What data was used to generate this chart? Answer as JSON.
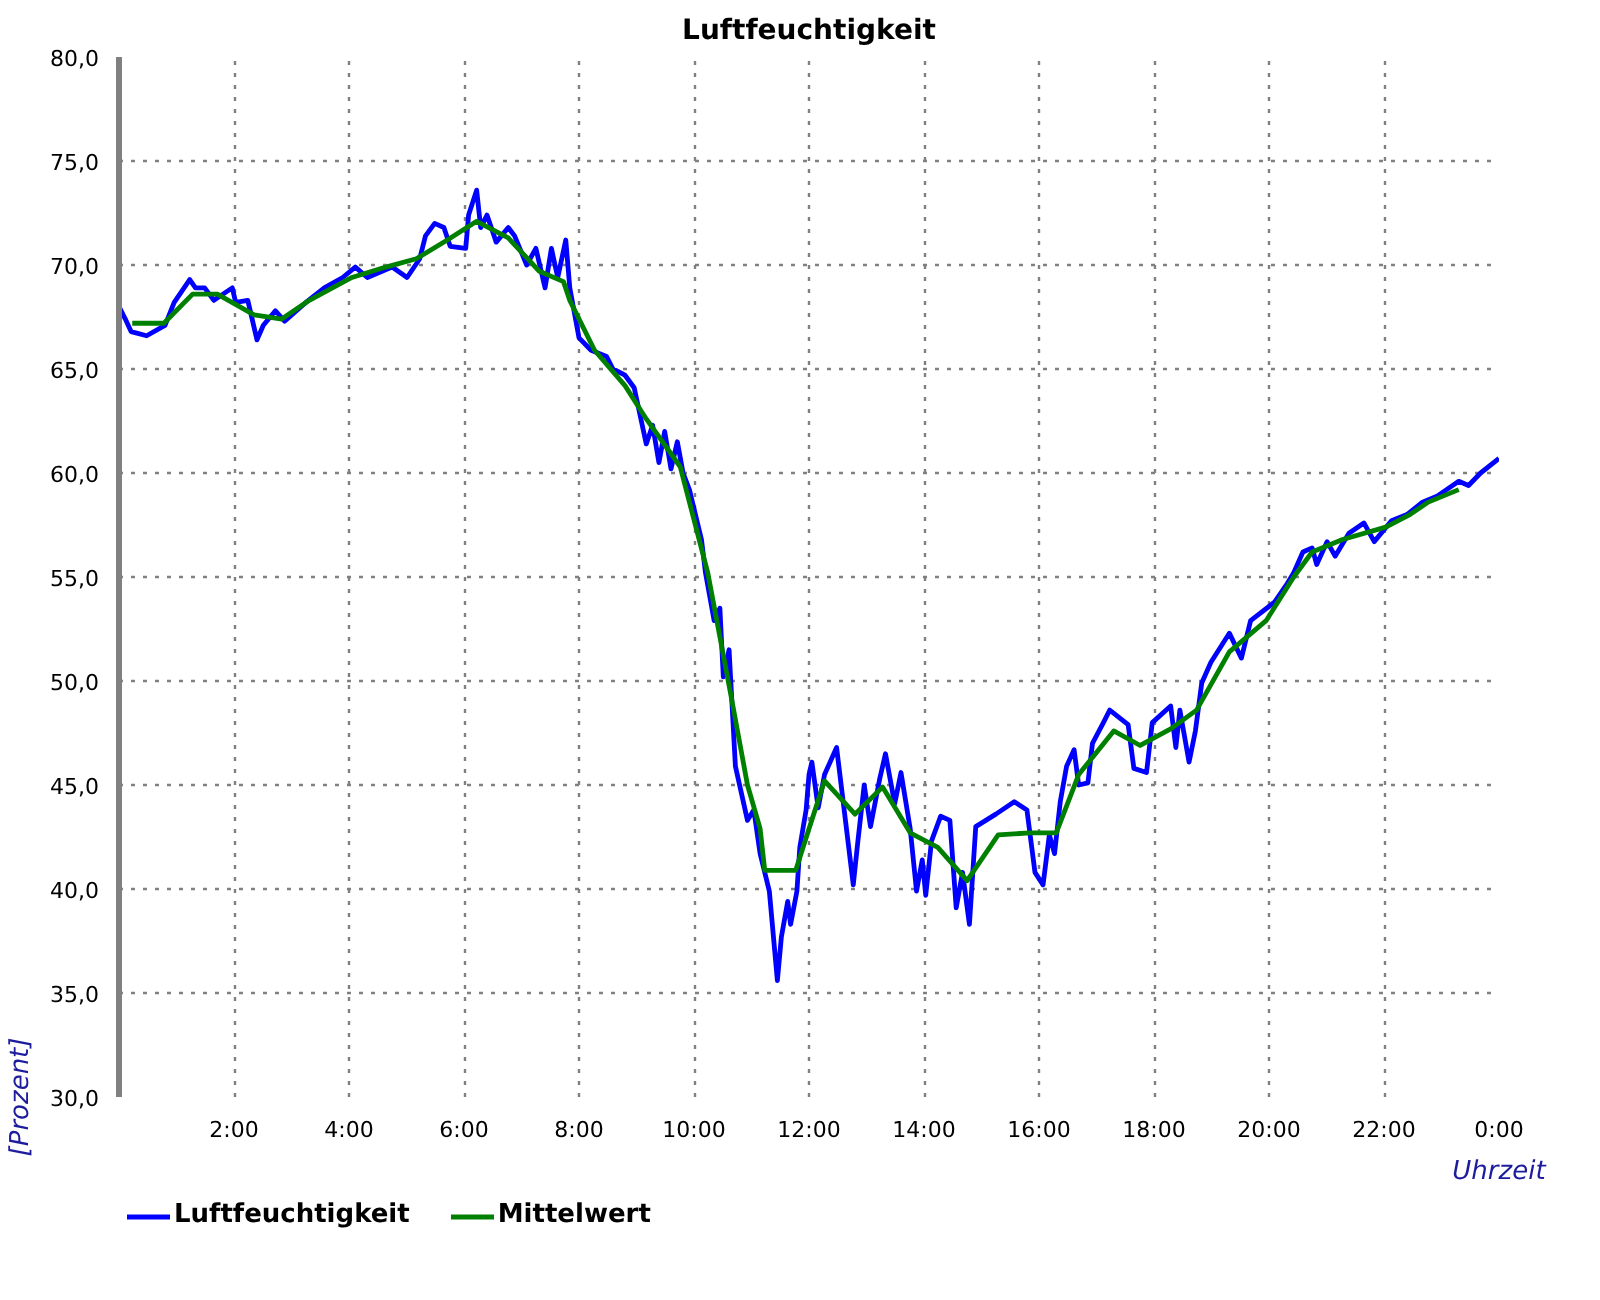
{
  "chart_data": {
    "type": "line",
    "title": "Luftfeuchtigkeit",
    "xlabel": "Uhrzeit",
    "ylabel": "[Prozent]",
    "xlim": [
      0,
      24
    ],
    "ylim": [
      30,
      80
    ],
    "xticks": [
      {
        "value": 0,
        "label": null
      },
      {
        "value": 2,
        "label": "2:00"
      },
      {
        "value": 4,
        "label": "4:00"
      },
      {
        "value": 6,
        "label": "6:00"
      },
      {
        "value": 8,
        "label": "8:00"
      },
      {
        "value": 10,
        "label": "10:00"
      },
      {
        "value": 12,
        "label": "12:00"
      },
      {
        "value": 14,
        "label": "14:00"
      },
      {
        "value": 16,
        "label": "16:00"
      },
      {
        "value": 18,
        "label": "18:00"
      },
      {
        "value": 20,
        "label": "20:00"
      },
      {
        "value": 22,
        "label": "22:00"
      },
      {
        "value": 24,
        "label": "0:00"
      }
    ],
    "yticks": [
      {
        "value": 30,
        "label": "30,0"
      },
      {
        "value": 35,
        "label": "35,0"
      },
      {
        "value": 40,
        "label": "40,0"
      },
      {
        "value": 45,
        "label": "45,0"
      },
      {
        "value": 50,
        "label": "50,0"
      },
      {
        "value": 55,
        "label": "55,0"
      },
      {
        "value": 60,
        "label": "60,0"
      },
      {
        "value": 65,
        "label": "65,0"
      },
      {
        "value": 70,
        "label": "70,0"
      },
      {
        "value": 75,
        "label": "75,0"
      },
      {
        "value": 80,
        "label": "80,0"
      }
    ],
    "grid": true,
    "legend": "bottom",
    "series": [
      {
        "name": "Luftfeuchtigkeit",
        "color": "#0000ff",
        "x": [
          0,
          0.11,
          0.21,
          0.48,
          0.8,
          0.96,
          1.23,
          1.33,
          1.49,
          1.65,
          1.97,
          2.03,
          2.24,
          2.4,
          2.51,
          2.72,
          2.88,
          3.25,
          3.57,
          3.89,
          4.11,
          4.32,
          4.75,
          5.01,
          5.23,
          5.33,
          5.49,
          5.65,
          5.76,
          6.03,
          6.08,
          6.22,
          6.29,
          6.4,
          6.56,
          6.77,
          6.88,
          7.09,
          7.25,
          7.41,
          7.52,
          7.63,
          7.77,
          7.84,
          8.0,
          8.21,
          8.48,
          8.59,
          8.8,
          8.96,
          9.17,
          9.28,
          9.39,
          9.49,
          9.6,
          9.71,
          9.81,
          9.92,
          10.13,
          10.2,
          10.35,
          10.45,
          10.51,
          10.61,
          10.72,
          10.93,
          11.04,
          11.15,
          11.31,
          11.45,
          11.52,
          11.63,
          11.68,
          11.79,
          11.84,
          11.95,
          12.0,
          12.05,
          12.16,
          12.27,
          12.48,
          12.77,
          12.85,
          12.96,
          13.07,
          13.23,
          13.33,
          13.49,
          13.6,
          13.76,
          13.87,
          13.97,
          14.03,
          14.13,
          14.29,
          14.45,
          14.56,
          14.67,
          14.79,
          14.9,
          15.25,
          15.57,
          15.79,
          15.93,
          16.07,
          16.18,
          16.27,
          16.37,
          16.48,
          16.61,
          16.69,
          16.85,
          16.93,
          17.12,
          17.23,
          17.55,
          17.65,
          17.87,
          17.97,
          18.29,
          18.38,
          18.45,
          18.61,
          18.72,
          18.83,
          18.99,
          19.31,
          19.52,
          19.68,
          20.1,
          20.32,
          20.43,
          20.59,
          20.75,
          20.83,
          21.01,
          21.15,
          21.39,
          21.65,
          21.83,
          22.13,
          22.4,
          22.67,
          22.93,
          23.3,
          23.47,
          23.68,
          24.0
        ],
        "values": [
          68.0,
          67.4,
          66.8,
          66.6,
          67.1,
          68.2,
          69.3,
          68.9,
          68.9,
          68.3,
          68.9,
          68.2,
          68.3,
          66.4,
          67.1,
          67.8,
          67.3,
          68.2,
          68.9,
          69.4,
          69.9,
          69.4,
          69.9,
          69.4,
          70.3,
          71.4,
          72.0,
          71.8,
          70.9,
          70.8,
          72.4,
          73.6,
          71.8,
          72.4,
          71.1,
          71.8,
          71.4,
          70.0,
          70.8,
          68.9,
          70.8,
          69.4,
          71.2,
          68.9,
          66.5,
          65.9,
          65.6,
          65.0,
          64.7,
          64.1,
          61.4,
          62.3,
          60.5,
          62.0,
          60.2,
          61.5,
          60.0,
          59.2,
          56.8,
          55.2,
          52.9,
          53.5,
          50.2,
          51.5,
          45.9,
          43.3,
          43.8,
          41.7,
          39.9,
          35.6,
          37.7,
          39.4,
          38.3,
          39.9,
          42.0,
          43.8,
          45.5,
          46.1,
          43.9,
          45.5,
          46.8,
          40.2,
          42.3,
          45.0,
          43.0,
          45.3,
          46.5,
          44.1,
          45.6,
          42.9,
          39.9,
          41.4,
          39.7,
          42.3,
          43.5,
          43.3,
          39.1,
          40.8,
          38.3,
          43.0,
          43.6,
          44.2,
          43.8,
          40.8,
          40.2,
          42.6,
          41.7,
          44.2,
          45.9,
          46.7,
          45.0,
          45.1,
          47.0,
          48.0,
          48.6,
          47.9,
          45.8,
          45.6,
          48.0,
          48.8,
          46.8,
          48.6,
          46.1,
          47.6,
          49.9,
          50.9,
          52.3,
          51.1,
          52.9,
          53.8,
          54.7,
          55.2,
          56.2,
          56.4,
          55.6,
          56.7,
          56.0,
          57.1,
          57.6,
          56.7,
          57.7,
          58.0,
          58.6,
          58.9,
          59.6,
          59.4,
          60.0,
          60.7
        ]
      },
      {
        "name": "Mittelwert",
        "color": "#008000",
        "x": [
          0.23,
          0.78,
          1.28,
          1.71,
          2.35,
          2.83,
          3.31,
          4.05,
          4.64,
          5.17,
          5.71,
          6.22,
          6.77,
          7.31,
          7.73,
          7.84,
          8.27,
          8.8,
          9.17,
          9.76,
          10.24,
          10.67,
          10.93,
          11.15,
          11.23,
          11.77,
          12.0,
          12.27,
          12.8,
          13.28,
          13.76,
          14.24,
          14.75,
          15.29,
          15.84,
          16.3,
          16.69,
          17.3,
          17.76,
          18.29,
          18.74,
          19.31,
          19.95,
          20.43,
          20.75,
          21.28,
          22.03,
          22.45,
          22.77,
          23.3
        ],
        "values": [
          67.2,
          67.2,
          68.6,
          68.6,
          67.6,
          67.4,
          68.3,
          69.4,
          69.9,
          70.3,
          71.2,
          72.1,
          71.3,
          69.7,
          69.2,
          68.3,
          65.9,
          64.2,
          62.6,
          60.3,
          55.2,
          48.9,
          45.0,
          42.9,
          40.9,
          40.9,
          42.9,
          45.2,
          43.6,
          44.9,
          42.7,
          42.0,
          40.4,
          42.6,
          42.7,
          42.7,
          45.5,
          47.6,
          46.9,
          47.7,
          48.6,
          51.4,
          52.9,
          55.0,
          56.2,
          56.8,
          57.4,
          58.0,
          58.6,
          59.2
        ]
      }
    ]
  }
}
